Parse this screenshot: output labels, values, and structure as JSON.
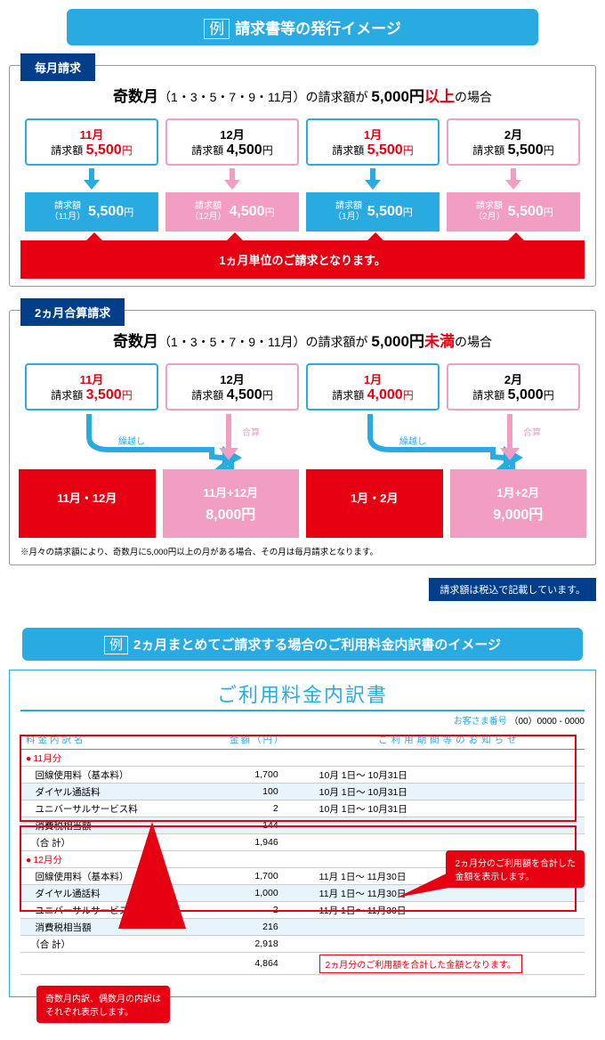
{
  "section1": {
    "header_prefix": "例",
    "header": "請求書等の発行イメージ",
    "panel1": {
      "tag": "毎月請求",
      "headline_prefix": "奇数月",
      "headline_sub": "（1・3・5・7・9・11月）の請求額が",
      "headline_amount": "5,000円",
      "headline_cond": "以上",
      "headline_suffix": "の場合",
      "cards": [
        {
          "month": "11月",
          "amount": "5,500",
          "red": true
        },
        {
          "month": "12月",
          "amount": "4,500",
          "red": false
        },
        {
          "month": "1月",
          "amount": "5,500",
          "red": true
        },
        {
          "month": "2月",
          "amount": "5,500",
          "red": false
        }
      ],
      "bills": [
        {
          "label": "請求額\n（11月）",
          "amount": "5,500",
          "blue": true
        },
        {
          "label": "請求額\n（12月）",
          "amount": "4,500",
          "blue": false
        },
        {
          "label": "請求額\n（1月）",
          "amount": "5,500",
          "blue": true
        },
        {
          "label": "請求額\n（2月）",
          "amount": "5,500",
          "blue": false
        }
      ],
      "redbox": "1ヵ月単位のご請求となります。"
    },
    "panel2": {
      "tag": "2ヵ月合算請求",
      "headline_prefix": "奇数月",
      "headline_sub": "（1・3・5・7・9・11月）の請求額が",
      "headline_amount": "5,000円",
      "headline_cond": "未満",
      "headline_suffix": "の場合",
      "cards": [
        {
          "month": "11月",
          "amount": "3,500",
          "red": true
        },
        {
          "month": "12月",
          "amount": "4,500",
          "red": false
        },
        {
          "month": "1月",
          "amount": "4,000",
          "red": true
        },
        {
          "month": "2月",
          "amount": "5,000",
          "red": false
        }
      ],
      "merge_labels": {
        "carry": "繰越し",
        "sum": "合算"
      },
      "bills": [
        {
          "label": "11月・12月",
          "red": true
        },
        {
          "label": "11月+12月",
          "amount": "8,000",
          "red": false
        },
        {
          "label": "1月・2月",
          "red": true
        },
        {
          "label": "1月+2月",
          "amount": "9,000",
          "red": false
        }
      ],
      "note": "※月々の請求額により、奇数月に5,000円以上の月がある場合、その月は毎月請求となります。"
    },
    "footer_tag": "請求額は税込で記載しています。"
  },
  "section2": {
    "header_prefix": "例",
    "header": "2ヵ月まとめてご請求する場合のご利用料金内訳書のイメージ",
    "doc_title": "ご利用料金内訳書",
    "customer_label": "お客さま番号",
    "customer_num": "（00）0000 - 0000",
    "th1": "料金内訳名",
    "th2": "金額（円）",
    "th3": "ご利用期間等のお知らせ",
    "group1_month": "11月分",
    "group2_month": "12月分",
    "rows1": [
      {
        "name": "回線使用料（基本料）",
        "amt": "1,700",
        "period": "10月 1日～ 10月31日"
      },
      {
        "name": "ダイヤル通話料",
        "amt": "100",
        "period": "10月 1日～ 10月31日"
      },
      {
        "name": "ユニバーサルサービス料",
        "amt": "2",
        "period": "10月 1日～ 10月31日"
      },
      {
        "name": "消費税相当額",
        "amt": "144",
        "period": ""
      },
      {
        "name": "（合 計）",
        "amt": "1,946",
        "period": ""
      }
    ],
    "rows2": [
      {
        "name": "回線使用料（基本料）",
        "amt": "1,700",
        "period": "11月 1日～ 11月30日"
      },
      {
        "name": "ダイヤル通話料",
        "amt": "1,000",
        "period": "11月 1日～ 11月30日"
      },
      {
        "name": "ユニバーサルサービス料",
        "amt": "2",
        "period": "11月 1日～ 11月30日"
      },
      {
        "name": "消費税相当額",
        "amt": "216",
        "period": ""
      },
      {
        "name": "（合 計）",
        "amt": "2,918",
        "period": ""
      }
    ],
    "grand_total": "4,864",
    "total_note": "2ヵ月分のご利用額を合計した金額となります。",
    "callout1": "奇数月内訳、偶数月の内訳は\nそれぞれ表示します。",
    "callout2": "2ヵ月分のご利用額を合計した\n金額を表示します。"
  },
  "colors": {
    "blue": "#29abe2",
    "navy": "#003e8a",
    "pink": "#f19ec2",
    "red": "#e60012"
  }
}
